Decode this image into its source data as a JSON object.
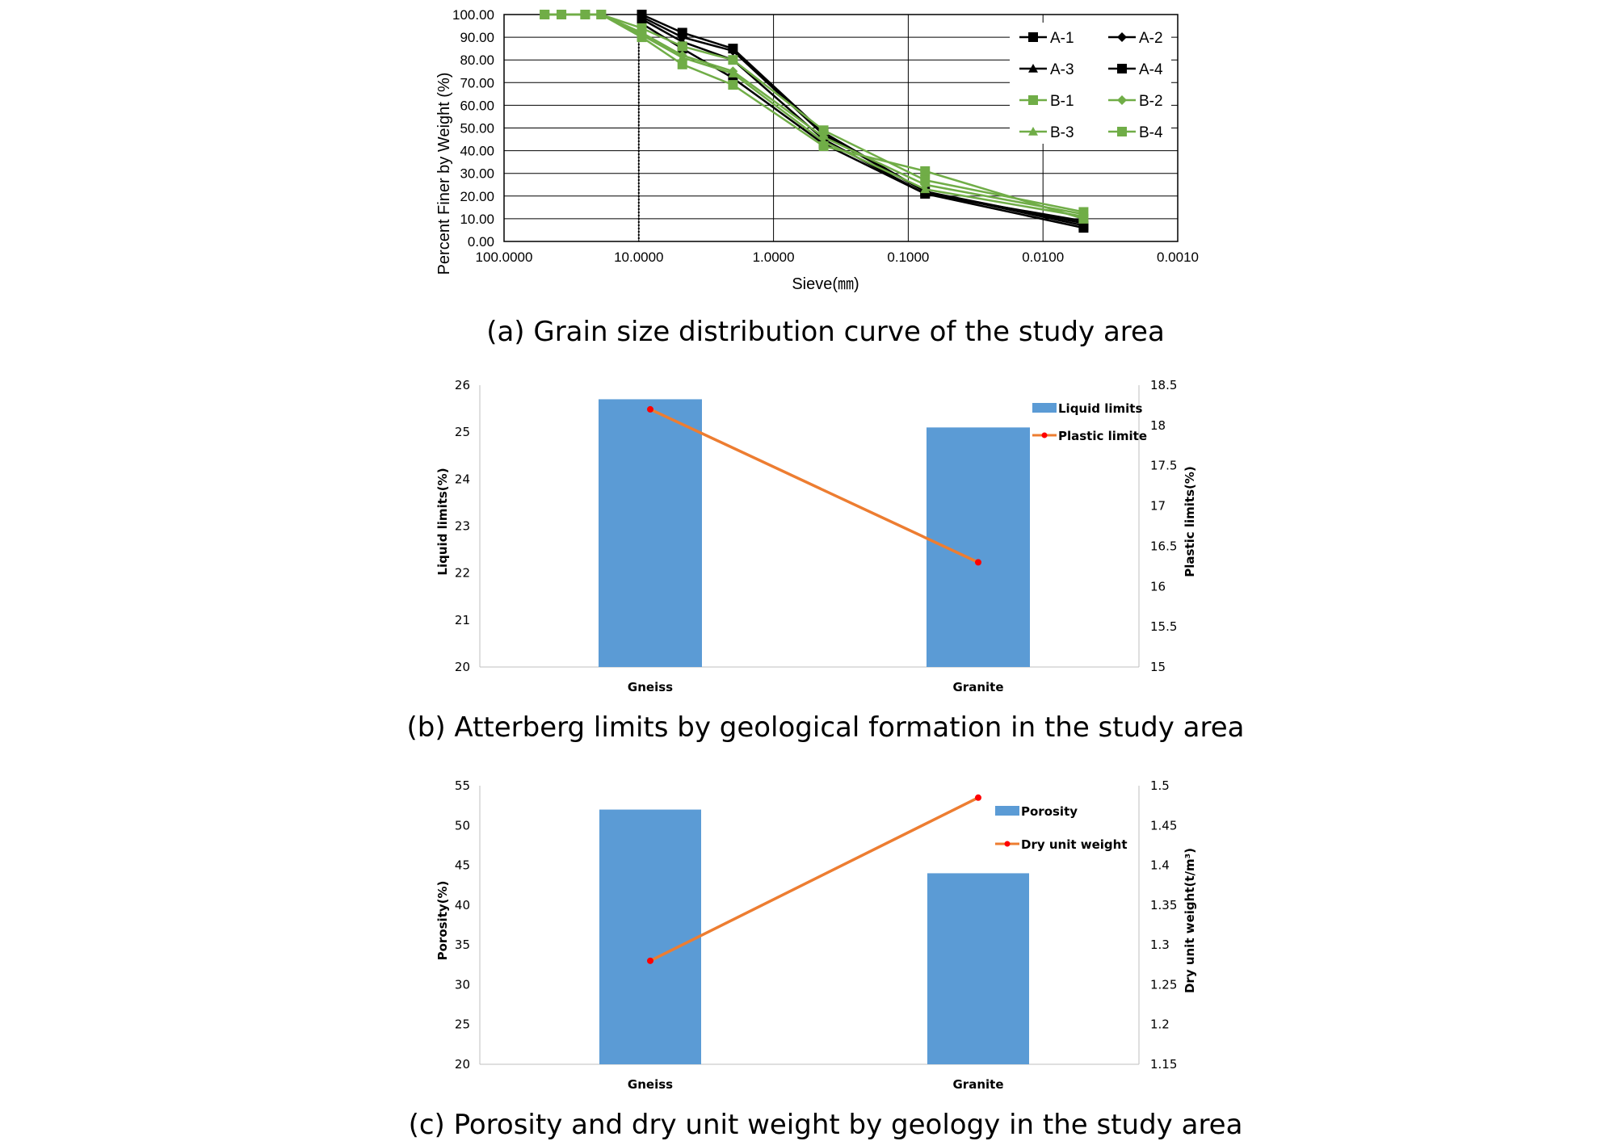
{
  "colors": {
    "black_series": "#000000",
    "green_series": "#70ad47",
    "bar": "#5b9bd5",
    "line": "#ed7d31",
    "line_marker": "#ff0000",
    "grid": "#000000"
  },
  "chart_data": [
    {
      "type": "line",
      "caption": "(a) Grain size distribution curve of the study area",
      "xlabel": "Sieve(㎜)",
      "ylabel": "Percent Finer by Weight (%)",
      "x_scale": "log-reversed",
      "xlim": [
        100,
        0.001
      ],
      "ylim": [
        0,
        100
      ],
      "x_ticks": [
        "100.0000",
        "10.0000",
        "1.0000",
        "0.1000",
        "0.0100",
        "0.0010"
      ],
      "y_ticks": [
        "100.00",
        "90.00",
        "80.00",
        "70.00",
        "60.00",
        "50.00",
        "40.00",
        "30.00",
        "20.00",
        "10.00",
        "0.00"
      ],
      "grid": true,
      "legend": "top-right",
      "series": [
        {
          "name": "A-1",
          "marker": "square",
          "color": "#000000",
          "x": [
            9.5,
            4.75,
            2.0,
            0.425,
            0.075,
            0.005
          ],
          "y": [
            100,
            92,
            85,
            48,
            22,
            7
          ]
        },
        {
          "name": "A-2",
          "marker": "diamond",
          "color": "#000000",
          "x": [
            9.5,
            4.75,
            2.0,
            0.425,
            0.075,
            0.005
          ],
          "y": [
            99,
            90,
            84,
            47,
            22,
            8
          ]
        },
        {
          "name": "A-3",
          "marker": "triangle",
          "color": "#000000",
          "x": [
            9.5,
            4.75,
            2.0,
            0.425,
            0.075,
            0.005
          ],
          "y": [
            98,
            88,
            80,
            45,
            21,
            9
          ]
        },
        {
          "name": "A-4",
          "marker": "square",
          "color": "#000000",
          "x": [
            9.5,
            4.75,
            2.0,
            0.425,
            0.075,
            0.005
          ],
          "y": [
            96,
            85,
            72,
            43,
            21,
            6
          ]
        },
        {
          "name": "B-1",
          "marker": "square",
          "color": "#70ad47",
          "x": [
            50,
            37.5,
            25,
            19,
            9.5,
            4.75,
            2.0,
            0.425,
            0.075,
            0.005
          ],
          "y": [
            100,
            100,
            100,
            100,
            94,
            86,
            80,
            49,
            27,
            13
          ]
        },
        {
          "name": "B-2",
          "marker": "diamond",
          "color": "#70ad47",
          "x": [
            50,
            37.5,
            25,
            19,
            9.5,
            4.75,
            2.0,
            0.425,
            0.075,
            0.005
          ],
          "y": [
            100,
            100,
            100,
            100,
            92,
            82,
            75,
            46,
            25,
            12
          ]
        },
        {
          "name": "B-3",
          "marker": "triangle",
          "color": "#70ad47",
          "x": [
            50,
            37.5,
            25,
            19,
            9.5,
            4.75,
            2.0,
            0.425,
            0.075,
            0.005
          ],
          "y": [
            100,
            100,
            100,
            100,
            91,
            81,
            74,
            44,
            23,
            11
          ]
        },
        {
          "name": "B-4",
          "marker": "square",
          "color": "#70ad47",
          "x": [
            50,
            37.5,
            25,
            19,
            9.5,
            4.75,
            2.0,
            0.425,
            0.075,
            0.005
          ],
          "y": [
            100,
            100,
            100,
            100,
            90,
            78,
            69,
            42,
            31,
            10
          ]
        }
      ]
    },
    {
      "type": "bar",
      "caption": "(b) Atterberg limits by geological formation in the study area",
      "categories": [
        "Gneiss",
        "Granite"
      ],
      "ylabel": "Liquid limits(%)",
      "y2label": "Plastic limits(%)",
      "ylim": [
        20,
        26
      ],
      "y2lim": [
        15,
        18.5
      ],
      "y_ticks": [
        "26",
        "25",
        "24",
        "23",
        "22",
        "21",
        "20"
      ],
      "y2_ticks": [
        "18.5",
        "18",
        "17.5",
        "17",
        "16.5",
        "16",
        "15.5",
        "15"
      ],
      "legend": "top-right",
      "series": [
        {
          "name": "Liquid limits",
          "kind": "bar",
          "axis": "left",
          "values": [
            25.7,
            25.1
          ]
        },
        {
          "name": "Plastic limite",
          "kind": "line",
          "axis": "right",
          "values": [
            18.2,
            16.3
          ]
        }
      ]
    },
    {
      "type": "bar",
      "caption": "(c) Porosity and dry unit weight by geology in the study area",
      "categories": [
        "Gneiss",
        "Granite"
      ],
      "ylabel": "Porosity(%)",
      "y2label": "Dry unit weight(t/m³)",
      "ylim": [
        20,
        55
      ],
      "y2lim": [
        1.15,
        1.5
      ],
      "y_ticks": [
        "55",
        "50",
        "45",
        "40",
        "35",
        "30",
        "25",
        "20"
      ],
      "y2_ticks": [
        "1.5",
        "1.45",
        "1.4",
        "1.35",
        "1.3",
        "1.25",
        "1.2",
        "1.15"
      ],
      "legend": "top-right",
      "series": [
        {
          "name": "Porosity",
          "kind": "bar",
          "axis": "left",
          "values": [
            52,
            44
          ]
        },
        {
          "name": "Dry unit weight",
          "kind": "line",
          "axis": "right",
          "values": [
            1.28,
            1.485
          ]
        }
      ]
    }
  ]
}
